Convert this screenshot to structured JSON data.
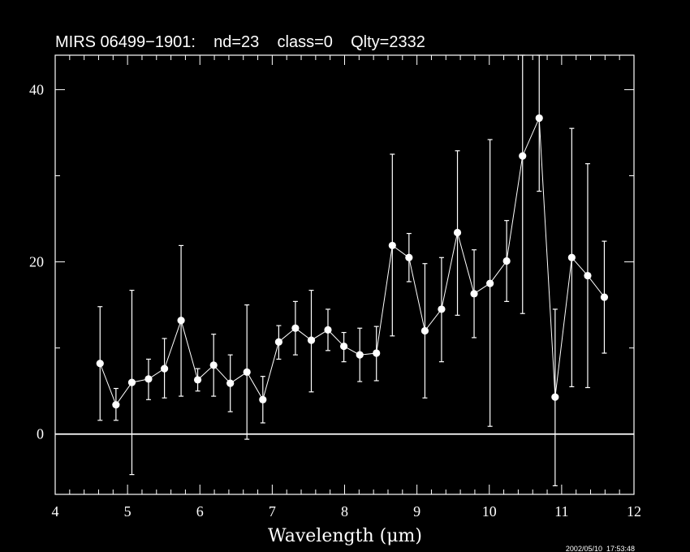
{
  "chart_data": {
    "type": "scatter",
    "title": "MIRS 06499−1901:    nd=23    class=0    Qlty=2332",
    "xlabel": "Wavelength (μm)",
    "ylabel": "",
    "xlim": [
      4,
      12
    ],
    "ylim": [
      -7,
      44
    ],
    "x_ticks": [
      4,
      5,
      6,
      7,
      8,
      9,
      10,
      11,
      12
    ],
    "y_ticks": [
      0,
      20,
      40
    ],
    "zero_line": 0,
    "grid": false,
    "points": [
      {
        "x": 4.62,
        "y": 8.2,
        "lo": 1.6,
        "hi": 14.8
      },
      {
        "x": 4.84,
        "y": 3.4,
        "lo": 1.6,
        "hi": 5.3
      },
      {
        "x": 5.06,
        "y": 6.0,
        "lo": -4.7,
        "hi": 16.7
      },
      {
        "x": 5.29,
        "y": 6.4,
        "lo": 4.0,
        "hi": 8.7
      },
      {
        "x": 5.51,
        "y": 7.6,
        "lo": 4.2,
        "hi": 11.1
      },
      {
        "x": 5.74,
        "y": 13.2,
        "lo": 4.4,
        "hi": 21.9
      },
      {
        "x": 5.97,
        "y": 6.3,
        "lo": 5.0,
        "hi": 7.6
      },
      {
        "x": 6.19,
        "y": 8.0,
        "lo": 4.4,
        "hi": 11.6
      },
      {
        "x": 6.42,
        "y": 5.9,
        "lo": 2.6,
        "hi": 9.2
      },
      {
        "x": 6.65,
        "y": 7.2,
        "lo": -0.6,
        "hi": 15.0
      },
      {
        "x": 6.87,
        "y": 4.0,
        "lo": 1.3,
        "hi": 6.7
      },
      {
        "x": 7.09,
        "y": 10.7,
        "lo": 8.7,
        "hi": 12.6
      },
      {
        "x": 7.32,
        "y": 12.3,
        "lo": 9.2,
        "hi": 15.4
      },
      {
        "x": 7.54,
        "y": 10.9,
        "lo": 4.9,
        "hi": 16.7
      },
      {
        "x": 7.77,
        "y": 12.1,
        "lo": 9.7,
        "hi": 14.5
      },
      {
        "x": 7.99,
        "y": 10.2,
        "lo": 8.4,
        "hi": 11.8
      },
      {
        "x": 8.21,
        "y": 9.2,
        "lo": 6.1,
        "hi": 12.3
      },
      {
        "x": 8.44,
        "y": 9.4,
        "lo": 6.2,
        "hi": 12.5
      },
      {
        "x": 8.66,
        "y": 21.9,
        "lo": 11.4,
        "hi": 32.5
      },
      {
        "x": 8.89,
        "y": 20.5,
        "lo": 17.7,
        "hi": 23.3
      },
      {
        "x": 9.11,
        "y": 12.0,
        "lo": 4.2,
        "hi": 19.8
      },
      {
        "x": 9.34,
        "y": 14.5,
        "lo": 8.4,
        "hi": 20.5
      },
      {
        "x": 9.56,
        "y": 23.4,
        "lo": 13.8,
        "hi": 32.9
      },
      {
        "x": 9.79,
        "y": 16.3,
        "lo": 11.2,
        "hi": 21.4
      },
      {
        "x": 10.01,
        "y": 17.5,
        "lo": 0.9,
        "hi": 34.2
      },
      {
        "x": 10.24,
        "y": 20.1,
        "lo": 15.4,
        "hi": 24.8
      },
      {
        "x": 10.46,
        "y": 32.3,
        "lo": 14.0,
        "hi": 44.0
      },
      {
        "x": 10.69,
        "y": 36.7,
        "lo": 28.2,
        "hi": 44.0
      },
      {
        "x": 10.91,
        "y": 4.3,
        "lo": -6.0,
        "hi": 14.5
      },
      {
        "x": 11.14,
        "y": 20.5,
        "lo": 5.5,
        "hi": 35.5
      },
      {
        "x": 11.36,
        "y": 18.4,
        "lo": 5.4,
        "hi": 31.4
      },
      {
        "x": 11.59,
        "y": 15.9,
        "lo": 9.4,
        "hi": 22.4
      }
    ],
    "colors": {
      "background": "#000000",
      "foreground": "#ffffff"
    }
  },
  "footer": {
    "timestamp": "2002/05/10  17:53:48"
  }
}
